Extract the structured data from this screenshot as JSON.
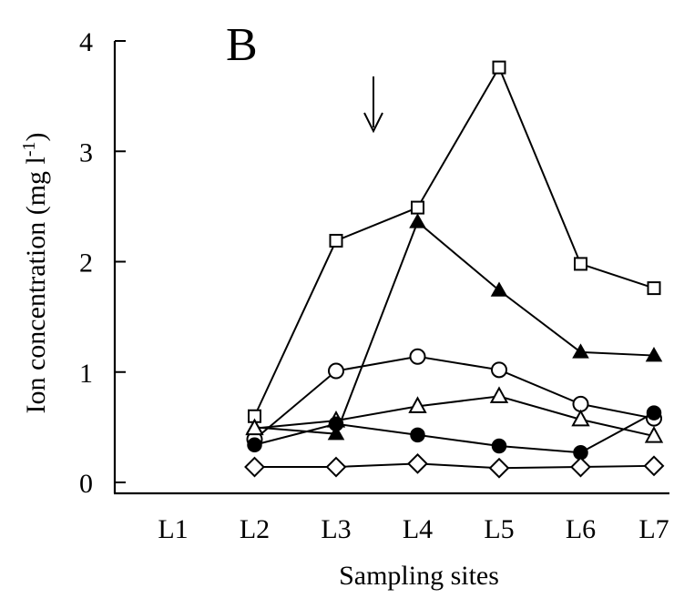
{
  "chart_data": {
    "type": "line",
    "panel_label": "B",
    "title": "",
    "xlabel": "Sampling sites",
    "ylabel": "Ion concentration (mg l-1)",
    "ylabel_parts": {
      "main": "Ion concentration (mg l",
      "sup": "-1",
      "close": ")"
    },
    "categories": [
      "L1",
      "L2",
      "L3",
      "L4",
      "L5",
      "L6",
      "L7"
    ],
    "ylim": [
      0,
      4
    ],
    "yticks": [
      0,
      1,
      2,
      3,
      4
    ],
    "grid": false,
    "legend": "none",
    "annotation": {
      "type": "arrow-down",
      "x_between": [
        "L3",
        "L4"
      ]
    },
    "series": [
      {
        "marker": "open-square",
        "values": [
          null,
          0.6,
          2.19,
          2.49,
          3.76,
          1.98,
          1.76
        ]
      },
      {
        "marker": "filled-triangle",
        "values": [
          null,
          0.5,
          0.44,
          2.36,
          1.74,
          1.18,
          1.15
        ]
      },
      {
        "marker": "open-circle",
        "values": [
          null,
          0.39,
          1.01,
          1.14,
          1.02,
          0.71,
          0.58
        ]
      },
      {
        "marker": "open-triangle",
        "values": [
          null,
          0.49,
          0.56,
          0.69,
          0.78,
          0.57,
          0.42
        ]
      },
      {
        "marker": "filled-circle",
        "values": [
          null,
          0.34,
          0.53,
          0.43,
          0.33,
          0.27,
          0.63
        ]
      },
      {
        "marker": "open-diamond",
        "values": [
          null,
          0.14,
          0.14,
          0.17,
          0.13,
          0.14,
          0.15
        ]
      }
    ]
  }
}
